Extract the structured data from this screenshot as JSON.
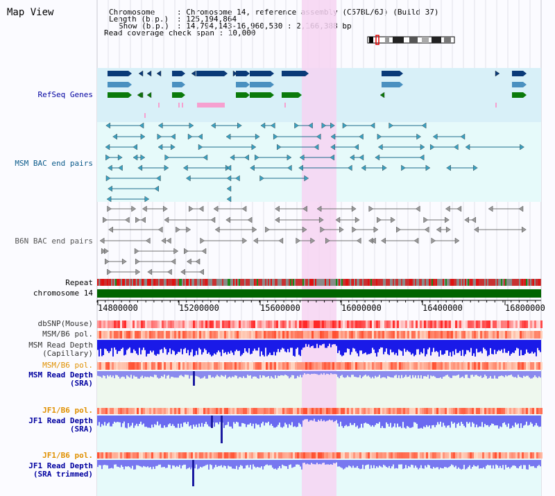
{
  "title": "Map View",
  "info": {
    "chromosome_key": "Chromosome",
    "chromosome_val": ": Chromosome 14, reference assembly (C57BL/6J) (Build 37)",
    "length_key": "Length (b.p.)",
    "length_val": ": 125,194,864",
    "show_key": "Show (b.p.)",
    "show_val": ": 14,794,143-16,960,530 : 2,166,388 bp",
    "coverage": "Read coverage check span : 10,000"
  },
  "tracks": {
    "refseq": "RefSeq Genes",
    "msm_bac": "MSM BAC end pairs",
    "b6n_bac": "B6N BAC end pairs",
    "repeat": "Repeat",
    "chromosome": "chromosome 14",
    "dbsnp": "dbSNP(Mouse)",
    "msm_b6_pol_1": "MSM/B6 pol.",
    "msm_depth_cap_1": "MSM Read Depth",
    "msm_depth_cap_2": "(Capillary)",
    "msm_b6_pol_2": "MSM/B6 pol.",
    "msm_depth_sra_1": "MSM Read Depth",
    "msm_depth_sra_2": "(SRA)",
    "jf1_b6_pol_1": "JF1/B6 pol.",
    "jf1_depth_1": "JF1 Read Depth",
    "jf1_depth_2": "(SRA)",
    "jf1_b6_pol_2": "JF1/B6 pol.",
    "jf1_trim_1": "JF1 Read Depth",
    "jf1_trim_2": "(SRA trimmed)"
  },
  "axis": {
    "ticks": [
      "14800000",
      "15200000",
      "15600000",
      "16000000",
      "16400000",
      "16800000"
    ]
  },
  "colors": {
    "refseq_dark": "#0a3a78",
    "refseq_mid": "#4a90c0",
    "refseq_green": "#0a7a0a",
    "msm_bac": "#1a6a8a",
    "b6n_bac": "#707070",
    "highlight": "#f6d4f2",
    "chromosome_bar": "#006400",
    "label_blue": "#0000a0",
    "label_teal": "#0a5a8a",
    "label_orange": "#e09000"
  }
}
